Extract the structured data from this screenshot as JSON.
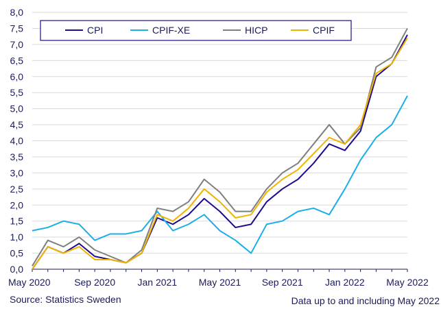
{
  "chart_data": {
    "type": "line",
    "x": [
      "May 2020",
      "Jun 2020",
      "Jul 2020",
      "Aug 2020",
      "Sep 2020",
      "Oct 2020",
      "Nov 2020",
      "Dec 2020",
      "Jan 2021",
      "Feb 2021",
      "Mar 2021",
      "Apr 2021",
      "May 2021",
      "Jun 2021",
      "Jul 2021",
      "Aug 2021",
      "Sep 2021",
      "Oct 2021",
      "Nov 2021",
      "Dec 2021",
      "Jan 2022",
      "Feb 2022",
      "Mar 2022",
      "Apr 2022",
      "May 2022"
    ],
    "x_tick_labels": [
      "May 2020",
      "Sep 2020",
      "Jan 2021",
      "May 2021",
      "Sep 2021",
      "Jan 2022",
      "May 2022"
    ],
    "x_tick_positions": [
      0,
      4,
      8,
      12,
      16,
      20,
      24
    ],
    "ylim": [
      0,
      8
    ],
    "y_ticks": [
      "0,0",
      "0,5",
      "1,0",
      "1,5",
      "2,0",
      "2,5",
      "3,0",
      "3,5",
      "4,0",
      "4,5",
      "5,0",
      "5,5",
      "6,0",
      "6,5",
      "7,0",
      "7,5",
      "8,0"
    ],
    "grid": "horizontal",
    "legend_position": "top",
    "series": [
      {
        "name": "CPI",
        "color": "#1e0a8c",
        "values": [
          0.0,
          0.7,
          0.5,
          0.8,
          0.4,
          0.3,
          0.2,
          0.5,
          1.6,
          1.4,
          1.7,
          2.2,
          1.8,
          1.3,
          1.4,
          2.1,
          2.5,
          2.8,
          3.3,
          3.9,
          3.7,
          4.3,
          6.0,
          6.4,
          7.3
        ]
      },
      {
        "name": "CPIF-XE",
        "color": "#1aafe6",
        "values": [
          1.2,
          1.3,
          1.5,
          1.4,
          0.9,
          1.1,
          1.1,
          1.2,
          1.8,
          1.2,
          1.4,
          1.7,
          1.2,
          0.9,
          0.5,
          1.4,
          1.5,
          1.8,
          1.9,
          1.7,
          2.5,
          3.4,
          4.1,
          4.5,
          5.4
        ]
      },
      {
        "name": "HICP",
        "color": "#7f7f7f",
        "values": [
          0.1,
          0.9,
          0.7,
          1.0,
          0.6,
          0.4,
          0.2,
          0.6,
          1.9,
          1.8,
          2.1,
          2.8,
          2.4,
          1.8,
          1.8,
          2.5,
          3.0,
          3.3,
          3.9,
          4.5,
          3.9,
          4.4,
          6.3,
          6.6,
          7.5
        ]
      },
      {
        "name": "CPIF",
        "color": "#f0b400",
        "values": [
          0.0,
          0.7,
          0.5,
          0.7,
          0.3,
          0.3,
          0.2,
          0.5,
          1.7,
          1.5,
          1.9,
          2.5,
          2.1,
          1.6,
          1.7,
          2.4,
          2.8,
          3.1,
          3.6,
          4.1,
          3.9,
          4.5,
          6.1,
          6.4,
          7.2
        ]
      }
    ]
  },
  "footer": {
    "source": "Source: Statistics Sweden",
    "note": "Data up to and including May 2022"
  }
}
